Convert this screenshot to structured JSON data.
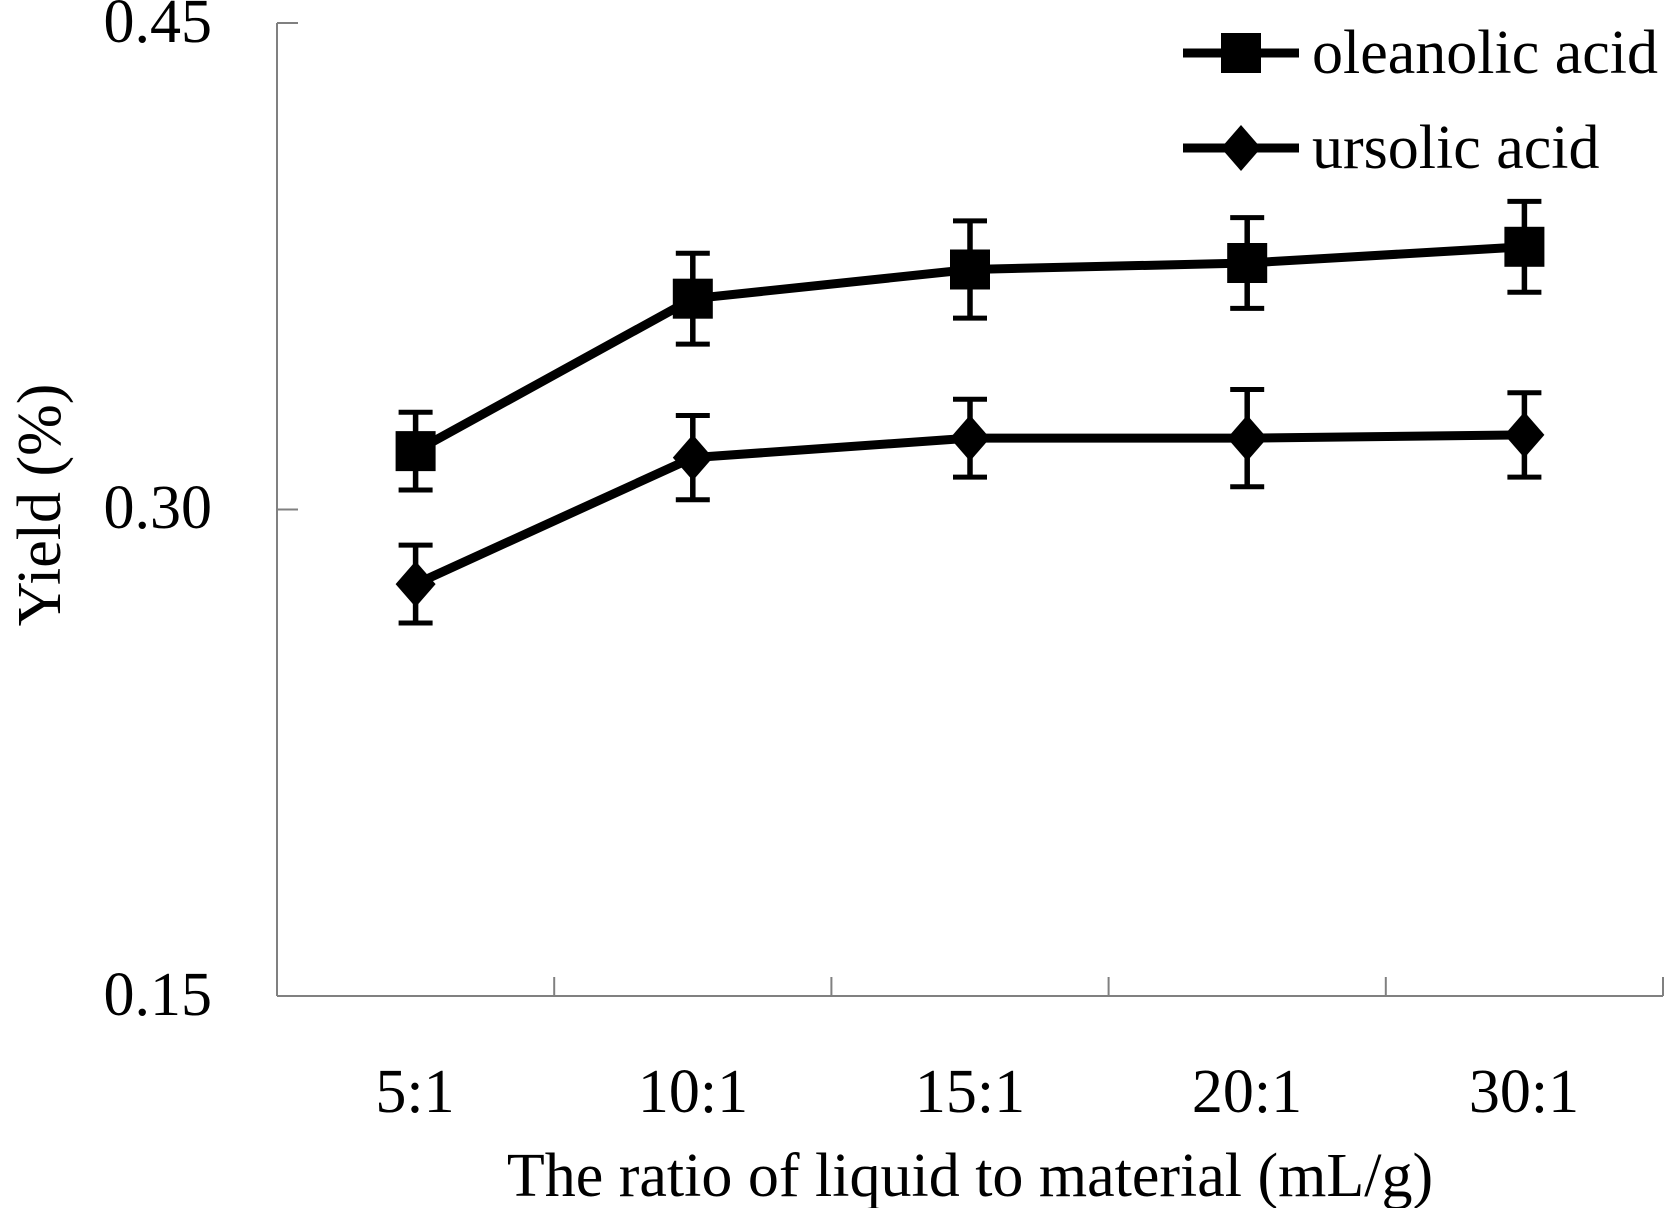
{
  "chart_data": {
    "type": "line",
    "title": "",
    "xlabel": "The ratio of liquid to material (mL/g)",
    "ylabel": "Yield (%)",
    "categories": [
      "5:1",
      "10:1",
      "15:1",
      "20:1",
      "30:1"
    ],
    "yticks": [
      "0.45",
      "0.30",
      "0.15"
    ],
    "ylim": [
      0.15,
      0.45
    ],
    "grid": false,
    "legend_position": "top-right",
    "axis_color": "#808080",
    "series": [
      {
        "name": "oleanolic acid",
        "marker": "square",
        "color": "#000000",
        "values": [
          0.318,
          0.365,
          0.374,
          0.376,
          0.381
        ],
        "errors": [
          0.012,
          0.014,
          0.015,
          0.014,
          0.014
        ]
      },
      {
        "name": "ursolic acid",
        "marker": "diamond",
        "color": "#000000",
        "values": [
          0.277,
          0.316,
          0.322,
          0.322,
          0.323
        ],
        "errors": [
          0.012,
          0.013,
          0.012,
          0.015,
          0.013
        ]
      }
    ]
  }
}
